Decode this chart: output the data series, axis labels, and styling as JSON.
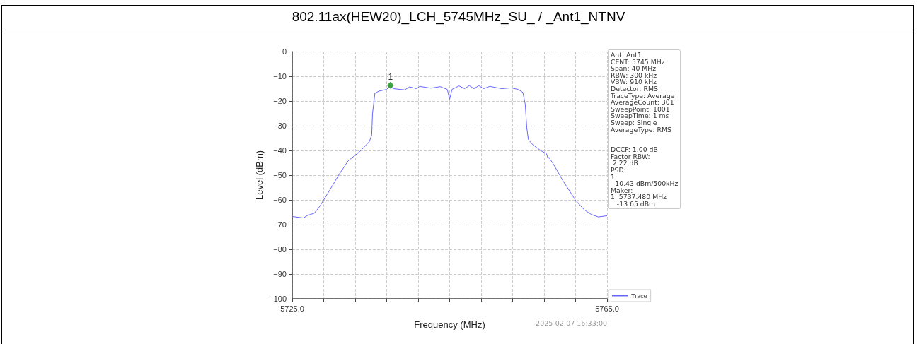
{
  "chart_data": {
    "type": "line",
    "title": "802.11ax(HEW20)_LCH_5745MHz_SU_ / _Ant1_NTNV",
    "xlabel": "Frequency (MHz)",
    "ylabel": "Level (dBm)",
    "xlim": [
      5725,
      5765
    ],
    "xticks": [
      {
        "value": 5725,
        "label": "5725.0"
      },
      {
        "value": 5729,
        "label": null
      },
      {
        "value": 5733,
        "label": null
      },
      {
        "value": 5737,
        "label": null
      },
      {
        "value": 5741,
        "label": null
      },
      {
        "value": 5745,
        "label": null
      },
      {
        "value": 5749,
        "label": null
      },
      {
        "value": 5753,
        "label": null
      },
      {
        "value": 5757,
        "label": null
      },
      {
        "value": 5761,
        "label": null
      },
      {
        "value": 5765,
        "label": "5765.0"
      }
    ],
    "ylim": [
      -100,
      0
    ],
    "yticks": [
      -100,
      -90,
      -80,
      -70,
      -60,
      -50,
      -40,
      -30,
      -20,
      -10,
      0
    ],
    "grid": true,
    "legend": "bottom right",
    "marker": "none",
    "line_style": "solid",
    "series": [
      {
        "name": "Trace",
        "color": "#6666ff",
        "x": [
          5725,
          5726.4,
          5727.0,
          5727.8,
          5728.5,
          5729.0,
          5729.7,
          5730.9,
          5732.1,
          5732.3,
          5733.6,
          5734.8,
          5735.1,
          5735.2,
          5735.5,
          5736.0,
          5737.0,
          5737.48,
          5737.8,
          5739.3,
          5739.9,
          5740.8,
          5741.2,
          5742.6,
          5743.8,
          5744.7,
          5745.0,
          5745.3,
          5746.2,
          5746.9,
          5747.5,
          5748.1,
          5748.7,
          5749.3,
          5750.1,
          5751.6,
          5752.8,
          5753.7,
          5754.3,
          5754.6,
          5754.8,
          5755.0,
          5755.5,
          5756.5,
          5757.3,
          5757.5,
          5757.6,
          5758.2,
          5759.4,
          5760.3,
          5761.0,
          5762.1,
          5763.0,
          5763.9,
          5765
        ],
        "values": [
          -66.7,
          -67.3,
          -66.2,
          -65.4,
          -62.6,
          -60,
          -56.4,
          -50,
          -44.2,
          -43.7,
          -40.4,
          -36.4,
          -33.7,
          -25.1,
          -16.9,
          -16.0,
          -15.3,
          -13.6,
          -15.0,
          -15.5,
          -14.3,
          -15.0,
          -14.1,
          -14.8,
          -14.2,
          -15.3,
          -19.3,
          -15.3,
          -13.9,
          -15.0,
          -13.8,
          -15.0,
          -13.8,
          -15.0,
          -14.1,
          -15.0,
          -14.7,
          -15.3,
          -16.5,
          -21.2,
          -30.8,
          -35.6,
          -37.5,
          -39.9,
          -41.3,
          -43.3,
          -42.8,
          -45.6,
          -52.3,
          -56.7,
          -60.2,
          -64,
          -65.9,
          -66.9,
          -66.4
        ]
      },
      {
        "color": "#109010",
        "type": "scatter",
        "marker": "diamond",
        "x": [
          5737.48
        ],
        "values": [
          -13.65
        ]
      }
    ],
    "annotations": [
      {
        "text": "1",
        "x": 5737.48,
        "y": -13.65
      },
      "Ant: Ant1",
      "CENT: 5745 MHz",
      "Span: 40 MHz",
      "RBW: 300 kHz",
      "VBW: 910 kHz",
      "Detector: RMS",
      "TraceType: Average",
      "AverageCount: 301",
      "SweepPoint: 1001",
      "SweepTime: 1 ms",
      "Sweep: Single",
      "AverageType: RMS",
      "DCCF: 1.00 dB",
      "Factor RBW:",
      " 2.22 dB",
      "PSD:",
      "1:",
      " -10.43 dBm/500kHz",
      "Maker:",
      "1. 5737.480 MHz",
      "   -13.65 dBm",
      "2025-02-07 16:33:00"
    ]
  }
}
